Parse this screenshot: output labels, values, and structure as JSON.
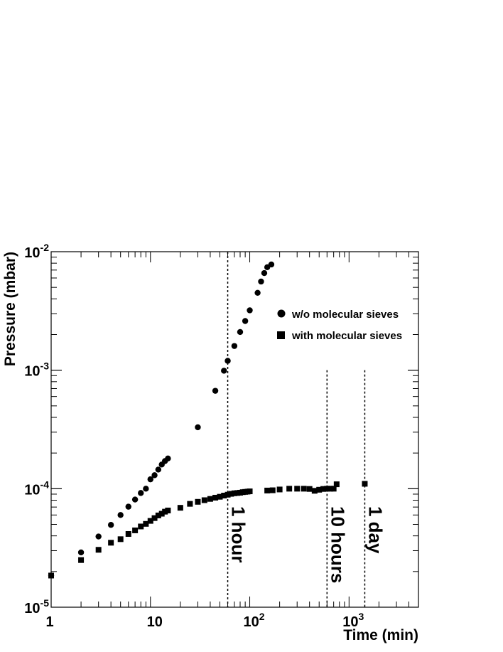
{
  "chart_data": {
    "type": "scatter",
    "xlabel": "Time (min)",
    "ylabel": "Pressure (mbar)",
    "x_scale": "log",
    "y_scale": "log",
    "xlim": [
      1,
      5000
    ],
    "ylim": [
      1e-05,
      0.01
    ],
    "x_ticks": [
      {
        "value": 1,
        "label": "1"
      },
      {
        "value": 10,
        "label": "10"
      },
      {
        "value": 100,
        "label": "10^2"
      },
      {
        "value": 1000,
        "label": "10^3"
      }
    ],
    "y_ticks": [
      {
        "value": 1e-05,
        "label": "10^-5"
      },
      {
        "value": 0.0001,
        "label": "10^-4"
      },
      {
        "value": 0.001,
        "label": "10^-3"
      },
      {
        "value": 0.01,
        "label": "10^-2"
      }
    ],
    "grid": false,
    "legend_position": "top-right",
    "series": [
      {
        "name": "w/o molecular sieves",
        "marker": "circle",
        "x": [
          1,
          2,
          3,
          4,
          5,
          6,
          7,
          8,
          9,
          10,
          11,
          12,
          13,
          14,
          15,
          30,
          45,
          55,
          60,
          70,
          80,
          90,
          100,
          120,
          130,
          140,
          150,
          165
        ],
        "y": [
          1.85e-05,
          2.9e-05,
          3.95e-05,
          4.95e-05,
          6e-05,
          7.05e-05,
          8.1e-05,
          9.2e-05,
          0.0001,
          0.00012,
          0.00013,
          0.000145,
          0.00016,
          0.000171,
          0.00018,
          0.00033,
          0.00067,
          0.00099,
          0.0012,
          0.0016,
          0.0021,
          0.0026,
          0.0032,
          0.0045,
          0.0056,
          0.0066,
          0.0074,
          0.0078
        ]
      },
      {
        "name": "with molecular sieves",
        "marker": "square",
        "x": [
          1,
          2,
          3,
          4,
          5,
          6,
          7,
          8,
          9,
          10,
          11,
          12,
          13,
          14,
          15,
          20,
          25,
          30,
          35,
          40,
          45,
          50,
          55,
          60,
          65,
          70,
          75,
          80,
          85,
          90,
          95,
          100,
          150,
          170,
          200,
          250,
          300,
          350,
          400,
          450,
          500,
          550,
          600,
          650,
          700,
          750,
          1440
        ],
        "y": [
          1.85e-05,
          2.5e-05,
          3.05e-05,
          3.5e-05,
          3.75e-05,
          4.15e-05,
          4.45e-05,
          4.8e-05,
          5.05e-05,
          5.35e-05,
          5.65e-05,
          5.95e-05,
          6.15e-05,
          6.4e-05,
          6.55e-05,
          6.9e-05,
          7.45e-05,
          7.75e-05,
          8e-05,
          8.2e-05,
          8.4e-05,
          8.55e-05,
          8.75e-05,
          8.9e-05,
          9.05e-05,
          9.15e-05,
          9.2e-05,
          9.25e-05,
          9.35e-05,
          9.4e-05,
          9.45e-05,
          9.5e-05,
          9.65e-05,
          9.7e-05,
          9.85e-05,
          0.0001,
          0.0001,
          0.0001,
          9.95e-05,
          9.6e-05,
          9.8e-05,
          9.95e-05,
          0.0001,
          0.0001,
          0.0001,
          0.000109,
          0.00011
        ]
      }
    ],
    "vlines": [
      {
        "x": 60,
        "label": "1 hour",
        "y_top": 0.01
      },
      {
        "x": 600,
        "label": "10 hours",
        "y_top": 0.001
      },
      {
        "x": 1440,
        "label": "1 day",
        "y_top": 0.001
      }
    ]
  }
}
